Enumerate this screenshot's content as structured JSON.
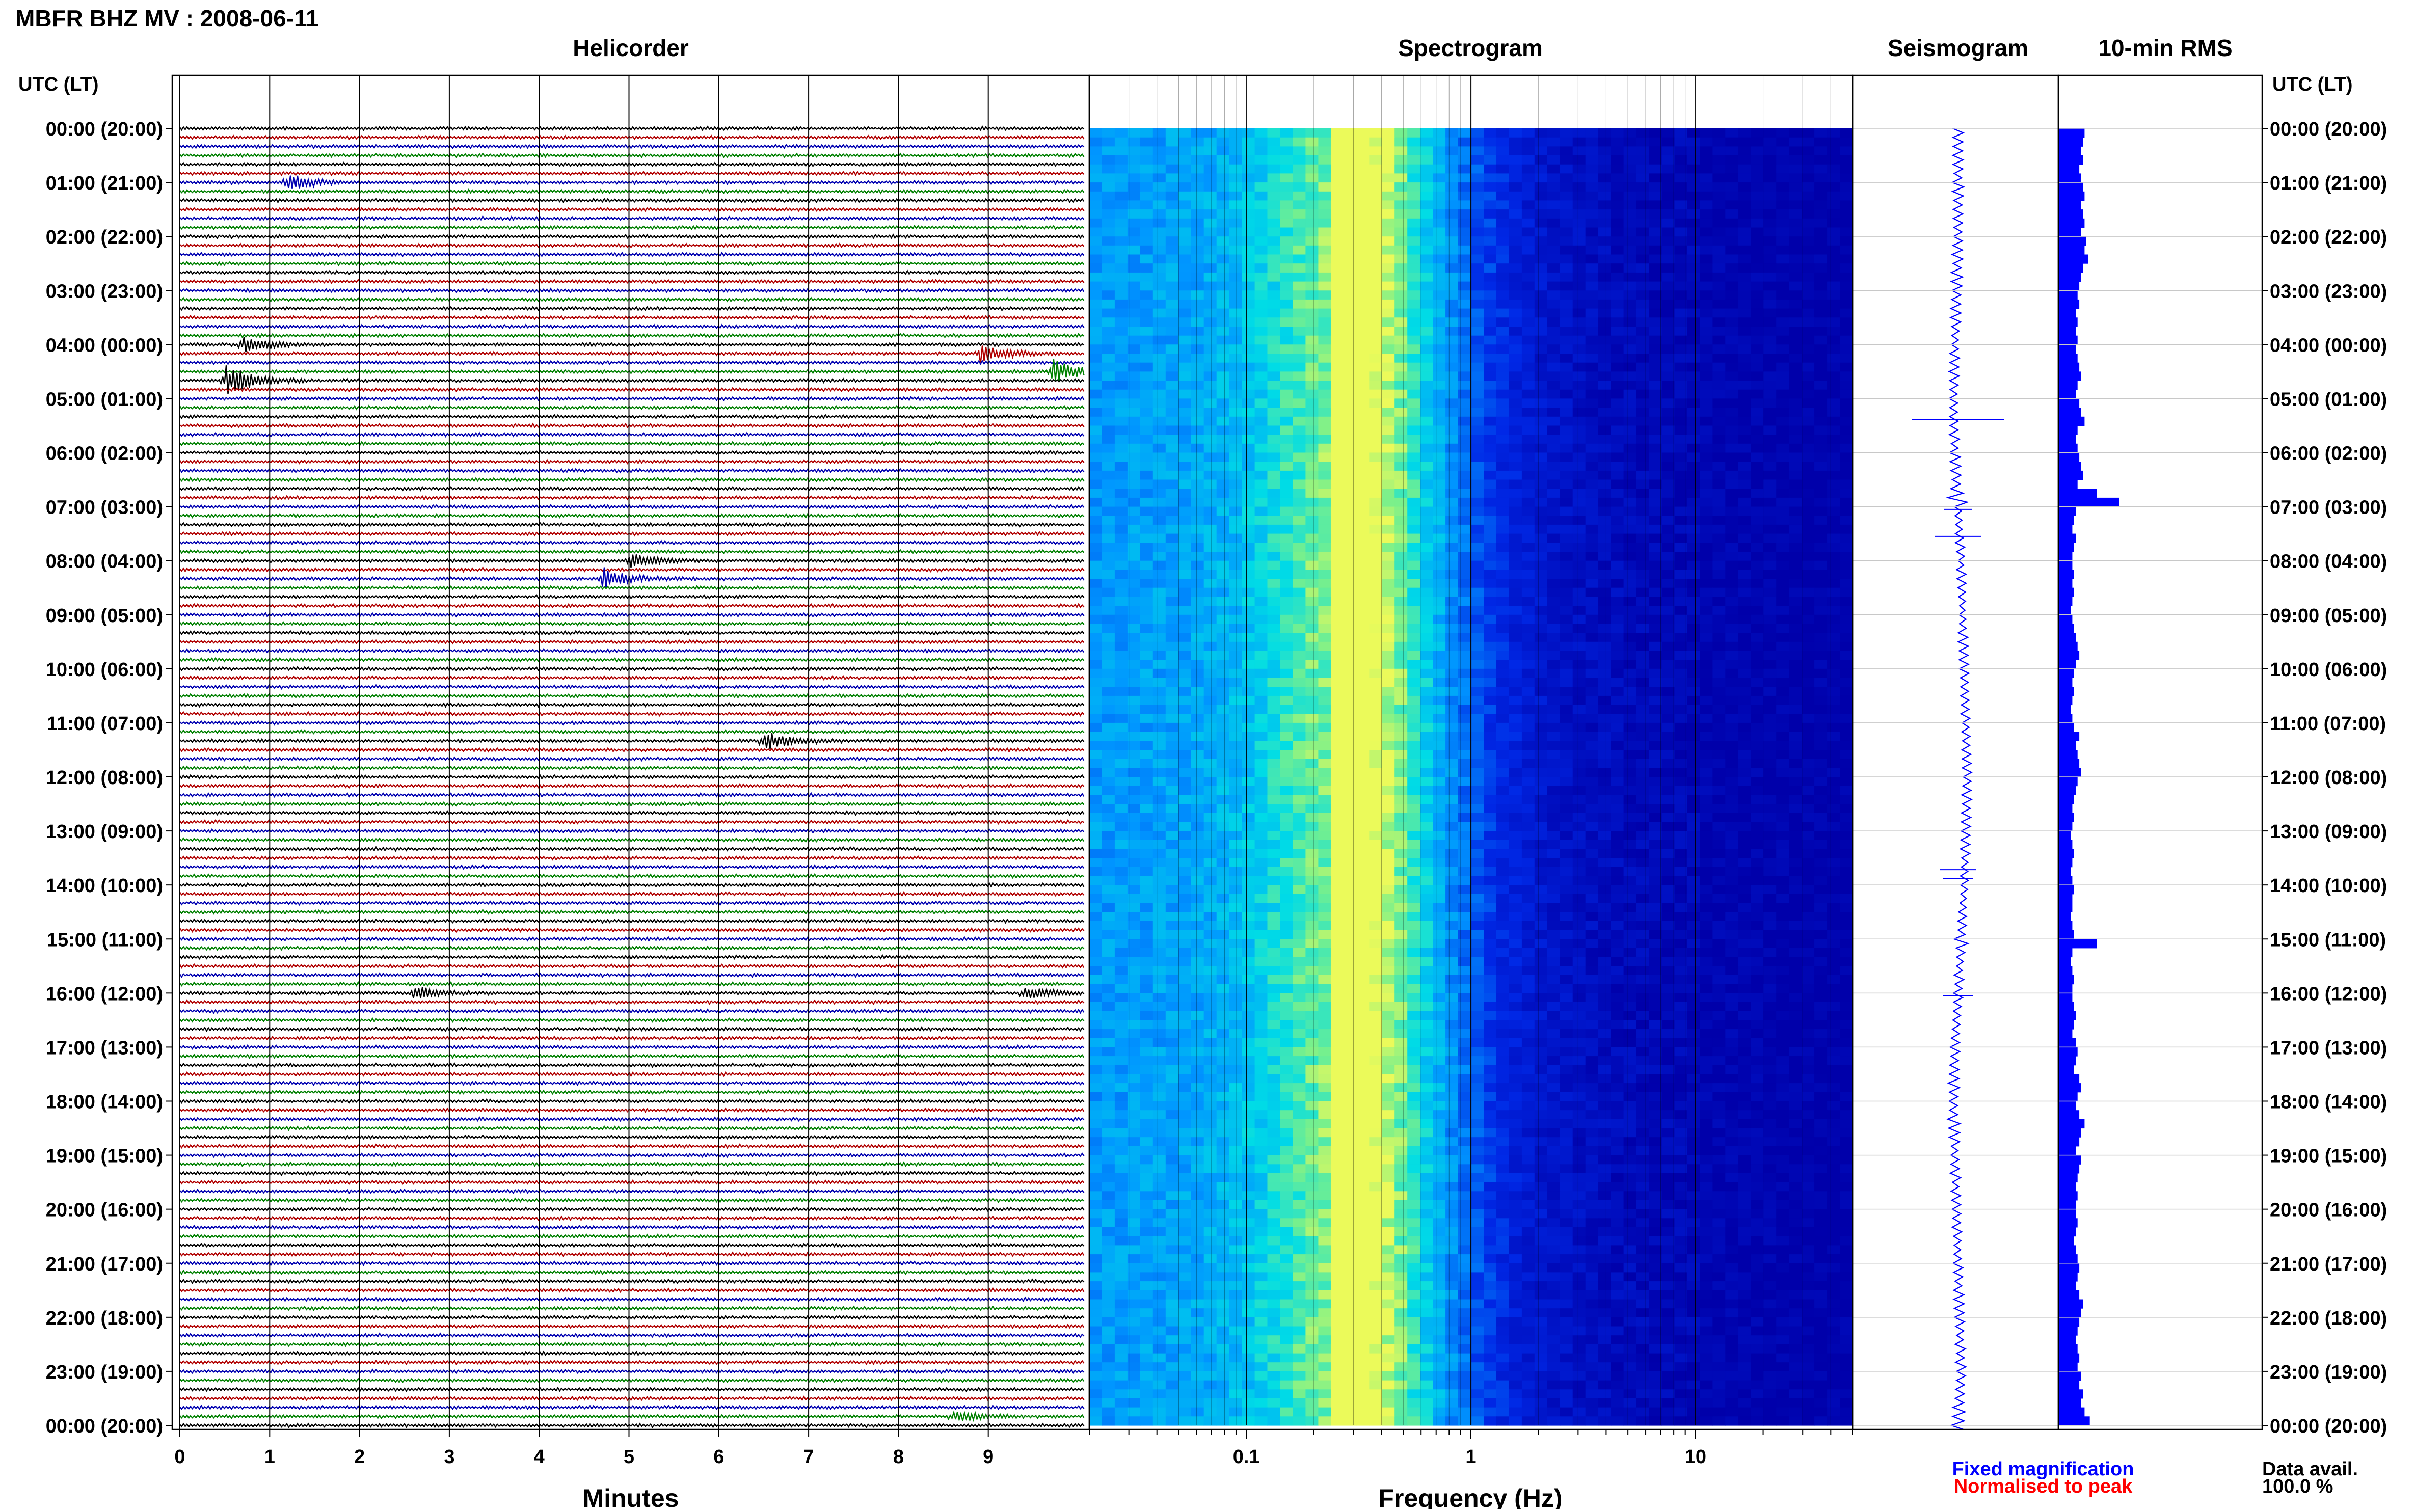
{
  "title": "MBFR BHZ MV : 2008-06-11",
  "panels": {
    "helicorder": "Helicorder",
    "spectrogram": "Spectrogram",
    "seismogram": "Seismogram",
    "rms": "10-min RMS"
  },
  "axis_header_left": "UTC (LT)",
  "axis_header_right": "UTC (LT)",
  "time_labels": [
    "00:00 (20:00)",
    "01:00 (21:00)",
    "02:00 (22:00)",
    "03:00 (23:00)",
    "04:00 (00:00)",
    "05:00 (01:00)",
    "06:00 (02:00)",
    "07:00 (03:00)",
    "08:00 (04:00)",
    "09:00 (05:00)",
    "10:00 (06:00)",
    "11:00 (07:00)",
    "12:00 (08:00)",
    "13:00 (09:00)",
    "14:00 (10:00)",
    "15:00 (11:00)",
    "16:00 (12:00)",
    "17:00 (13:00)",
    "18:00 (14:00)",
    "19:00 (15:00)",
    "20:00 (16:00)",
    "21:00 (17:00)",
    "22:00 (18:00)",
    "23:00 (19:00)",
    "00:00 (20:00)"
  ],
  "minutes_label": "Minutes",
  "minute_ticks": [
    "0",
    "1",
    "2",
    "3",
    "4",
    "5",
    "6",
    "7",
    "8",
    "9"
  ],
  "frequency_label": "Frequency (Hz)",
  "frequency_ticks": [
    "0.1",
    "1",
    "10"
  ],
  "legend": {
    "fixed": "Fixed magnification",
    "normalised": "Normalised to peak",
    "fixed_color": "#0000ff",
    "normalised_color": "#ff0000"
  },
  "data_avail_label": "Data avail.",
  "data_avail_value": "100.0 %",
  "colors": {
    "trace_cycle": [
      "#000000",
      "#b00000",
      "#0000b0",
      "#008000"
    ],
    "spectrogram_background": "#0000c8",
    "seismogram": "#0000ff",
    "rms_bar": "#0000ff"
  },
  "chart_data": [
    {
      "type": "line",
      "name": "helicorder",
      "xlabel": "Minutes",
      "xlim": [
        0,
        10
      ],
      "rows_per_hour": 6,
      "hours": 24,
      "events": [
        {
          "row": 6,
          "minute": 1.2,
          "amp": 1.6
        },
        {
          "row": 24,
          "minute": 0.7,
          "amp": 1.4
        },
        {
          "row": 25,
          "minute": 8.9,
          "amp": 1.8
        },
        {
          "row": 27,
          "minute": 9.7,
          "amp": 2.4
        },
        {
          "row": 28,
          "minute": 0.5,
          "amp": 3.0
        },
        {
          "row": 48,
          "minute": 5.0,
          "amp": 1.3
        },
        {
          "row": 50,
          "minute": 4.7,
          "amp": 2.0
        },
        {
          "row": 68,
          "minute": 6.5,
          "amp": 1.8
        },
        {
          "row": 96,
          "minute": 2.6,
          "amp": 1.2
        },
        {
          "row": 96,
          "minute": 9.4,
          "amp": 1.1
        },
        {
          "row": 143,
          "minute": 8.6,
          "amp": 1.0
        }
      ]
    },
    {
      "type": "heatmap",
      "name": "spectrogram",
      "xlabel": "Frequency (Hz)",
      "x_scale": "log",
      "xlim": [
        0.02,
        50
      ],
      "peak_frequency": 0.25
    },
    {
      "type": "line",
      "name": "seismogram",
      "rows": 144,
      "drift": [
        0,
        0,
        0,
        -1,
        -2,
        -3,
        -2,
        0,
        2,
        3,
        4,
        5,
        6,
        5,
        4,
        2,
        0,
        -2,
        -3,
        -2,
        -1,
        0,
        1,
        2,
        0
      ]
    },
    {
      "type": "bar",
      "name": "10-min RMS",
      "rows": 144,
      "values": [
        1.5,
        1.4,
        1.3,
        1.4,
        1.2,
        1.3,
        1.4,
        1.5,
        1.3,
        1.4,
        1.5,
        1.3,
        1.6,
        1.5,
        1.7,
        1.4,
        1.3,
        1.2,
        1.1,
        1.2,
        1.0,
        1.1,
        1.0,
        1.1,
        1.0,
        1.1,
        1.2,
        1.3,
        1.1,
        1.0,
        1.2,
        1.3,
        1.5,
        1.1,
        1.0,
        1.1,
        1.2,
        1.3,
        1.4,
        1.1,
        2.2,
        3.5,
        1.0,
        0.9,
        0.8,
        1.0,
        0.9,
        0.8,
        0.8,
        0.9,
        0.8,
        0.9,
        0.8,
        0.7,
        0.8,
        0.9,
        1.0,
        1.1,
        1.2,
        1.0,
        0.9,
        0.8,
        0.9,
        0.8,
        0.7,
        0.8,
        0.9,
        1.2,
        1.0,
        1.1,
        1.2,
        1.3,
        1.1,
        1.0,
        0.9,
        0.8,
        0.9,
        0.8,
        0.7,
        0.8,
        0.9,
        0.8,
        0.7,
        0.8,
        0.9,
        0.8,
        0.8,
        0.7,
        0.8,
        0.9,
        2.2,
        0.8,
        0.7,
        0.8,
        0.9,
        0.8,
        0.8,
        0.9,
        1.0,
        0.9,
        0.8,
        1.0,
        1.1,
        1.0,
        0.9,
        1.2,
        1.3,
        1.1,
        1.0,
        1.2,
        1.5,
        1.3,
        1.2,
        1.0,
        1.3,
        1.2,
        1.1,
        1.0,
        1.1,
        1.0,
        1.0,
        1.1,
        1.0,
        0.9,
        1.0,
        1.1,
        1.2,
        1.1,
        1.0,
        1.2,
        1.4,
        1.3,
        1.2,
        1.1,
        1.0,
        1.1,
        1.2,
        1.1,
        1.3,
        1.2,
        1.4,
        1.3,
        1.5,
        1.8
      ]
    }
  ]
}
